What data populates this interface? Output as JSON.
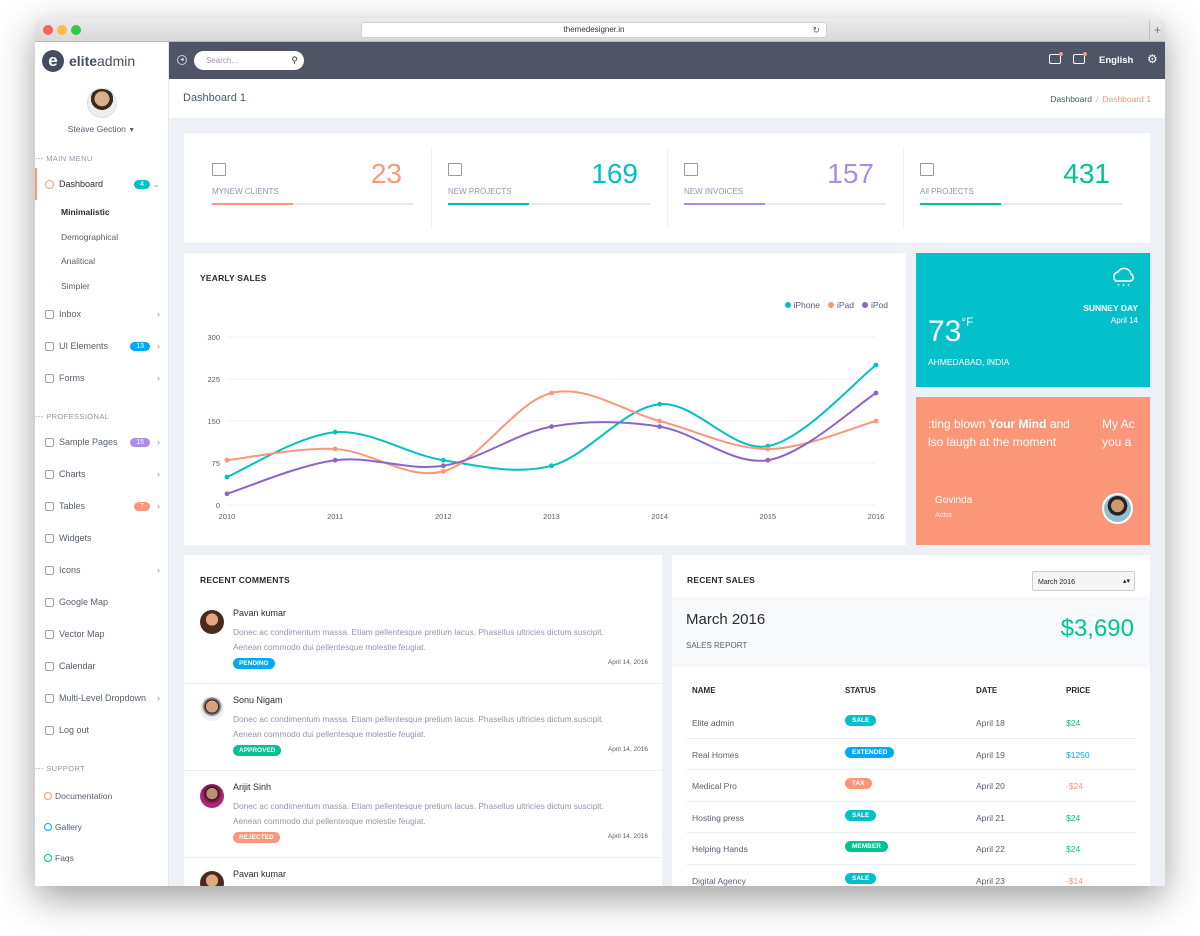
{
  "browser": {
    "url": "themedesigner.in"
  },
  "sidebar": {
    "logo_mark": "e",
    "logo_bold": "elite",
    "logo_light": "admin",
    "user_name": "Steave Gection",
    "main_menu_label": "MAIN MENU",
    "professional_label": "PROFESSIONAL",
    "support_label": "SUPPORT",
    "dashboard": {
      "label": "Dashboard",
      "badge": "4"
    },
    "dashboard_sub": [
      "Minimalistic",
      "Demographical",
      "Analitical",
      "Simpler"
    ],
    "inbox": "Inbox",
    "ui_elements": {
      "label": "UI Elements",
      "badge": "13"
    },
    "forms": "Forms",
    "sample_pages": {
      "label": "Sample Pages",
      "badge": "15"
    },
    "charts": "Charts",
    "tables": {
      "label": "Tables",
      "badge": "7"
    },
    "widgets": "Widgets",
    "icons": "Icons",
    "google_map": "Google Map",
    "vector_map": "Vector Map",
    "calendar": "Calendar",
    "multi_level": "Multi-Level Dropdown",
    "logout": "Log out",
    "support": [
      {
        "label": "Documentation",
        "color": "#fb9678"
      },
      {
        "label": "Gallery",
        "color": "#03a9f3"
      },
      {
        "label": "Faqs",
        "color": "#00c292"
      }
    ]
  },
  "topbar": {
    "search_placeholder": "Search...",
    "language": "English"
  },
  "page": {
    "title": "Dashboard 1",
    "crumb_home": "Dashboard",
    "crumb_current": "Dashboard 1"
  },
  "stats": [
    {
      "label": "MYNEW CLIENTS",
      "value": "23",
      "color": "#fb9678",
      "progress": 0.4
    },
    {
      "label": "NEW PROJECTS",
      "value": "169",
      "color": "#01c0c8",
      "progress": 0.4
    },
    {
      "label": "NEW INVOICES",
      "value": "157",
      "color": "#ab8ce4",
      "progress": 0.4
    },
    {
      "label": "All PROJECTS",
      "value": "431",
      "color": "#00c292",
      "progress": 0.4
    }
  ],
  "yearly_sales": {
    "title": "YEARLY SALES"
  },
  "chart_data": {
    "type": "line",
    "x": [
      "2010",
      "2011",
      "2012",
      "2013",
      "2014",
      "2015",
      "2016"
    ],
    "ylim": [
      0,
      300
    ],
    "yticks": [
      "0",
      "75",
      "150",
      "225",
      "300"
    ],
    "series": [
      {
        "name": "iPhone",
        "color": "#01c0c8",
        "values": [
          50,
          130,
          80,
          70,
          180,
          105,
          250
        ]
      },
      {
        "name": "iPad",
        "color": "#fb9678",
        "values": [
          80,
          100,
          60,
          200,
          150,
          100,
          150
        ]
      },
      {
        "name": "iPod",
        "color": "#8d65c7",
        "values": [
          20,
          80,
          70,
          140,
          140,
          80,
          200
        ]
      }
    ],
    "legend": "top-right"
  },
  "weather": {
    "temp": "73",
    "unit": "°F",
    "location": "AHMEDABAD, INDIA",
    "condition": "SUNNEY DAY",
    "date": "April 14"
  },
  "quote": {
    "line1_pre": ":ting blown ",
    "line1_bold": "Your Mind",
    "line1_post": " and",
    "line1_next": "My Ac",
    "line2": "lso laugh at the moment",
    "line2_next": "you a",
    "author": "Govinda",
    "role": "Actor"
  },
  "recent_comments": {
    "title": "RECENT COMMENTS",
    "items": [
      {
        "name": "Pavan kumar",
        "text": "Donec ac condimentum massa. Etiam pellentesque pretium lacus. Phasellus ultricies dictum suscipit. Aenean commodo dui pellentesque molestie feugiat.",
        "status": "PENDING",
        "status_color": "#03a9f3",
        "date": "April 14, 2016"
      },
      {
        "name": "Sonu Nigam",
        "text": "Donec ac condimentum massa. Etiam pellentesque pretium lacus. Phasellus ultricies dictum suscipit. Aenean commodo dui pellentesque molestie feugiat.",
        "status": "APPROVED",
        "status_color": "#00c292",
        "date": "April 14, 2016"
      },
      {
        "name": "Arijit Sinh",
        "text": "Donec ac condimentum massa. Etiam pellentesque pretium lacus. Phasellus ultricies dictum suscipit. Aenean commodo dui pellentesque molestie feugiat.",
        "status": "REJECTED",
        "status_color": "#fb9678",
        "date": "April 14, 2016"
      },
      {
        "name": "Pavan kumar",
        "text": "",
        "status": "",
        "status_color": "#03a9f3",
        "date": ""
      }
    ]
  },
  "recent_sales": {
    "title": "RECENT SALES",
    "select_value": "March 2016",
    "month": "March 2016",
    "report_label": "SALES REPORT",
    "total": "$3,690",
    "headers": [
      "NAME",
      "STATUS",
      "DATE",
      "PRICE"
    ],
    "rows": [
      {
        "name": "Elite admin",
        "status": "SALE",
        "status_color": "#01c0c8",
        "date": "April 18",
        "price": "$24",
        "price_color": "#00c292"
      },
      {
        "name": "Real Homes",
        "status": "EXTENDED",
        "status_color": "#03a9f3",
        "date": "April 19",
        "price": "$1250",
        "price_color": "#03a9f3"
      },
      {
        "name": "Medical Pro",
        "status": "TAX",
        "status_color": "#fb9678",
        "date": "April 20",
        "price": "-$24",
        "price_color": "#fb9678"
      },
      {
        "name": "Hosting press",
        "status": "SALE",
        "status_color": "#01c0c8",
        "date": "April 21",
        "price": "$24",
        "price_color": "#00c292"
      },
      {
        "name": "Helping Hands",
        "status": "MEMBER",
        "status_color": "#00c292",
        "date": "April 22",
        "price": "$24",
        "price_color": "#00c292"
      },
      {
        "name": "Digital Agency",
        "status": "SALE",
        "status_color": "#01c0c8",
        "date": "April 23",
        "price": "-$14",
        "price_color": "#fb9678"
      }
    ]
  }
}
